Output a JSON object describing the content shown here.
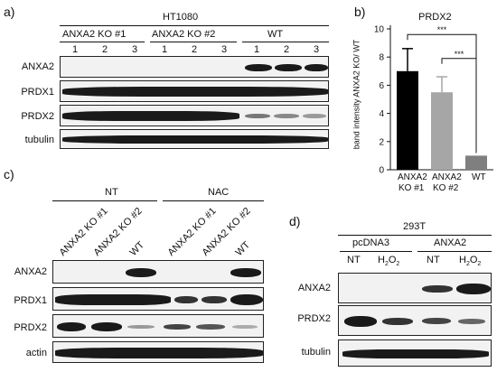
{
  "panel_a": {
    "label": "a)",
    "cell_line": "HT1080",
    "groups": [
      "ANXA2 KO #1",
      "ANXA2 KO #2",
      "WT"
    ],
    "lanes": [
      "1",
      "2",
      "3",
      "1",
      "2",
      "3",
      "1",
      "2",
      "3"
    ],
    "rows": [
      "ANXA2",
      "PRDX1",
      "PRDX2",
      "tubulin"
    ]
  },
  "panel_b": {
    "label": "b)",
    "chart_data": {
      "type": "bar",
      "title": "PRDX2",
      "ylabel": "band intensity ANXA2 KO/ WT",
      "categories": [
        "ANXA2\nKO #1",
        "ANXA2\nKO #2",
        "WT"
      ],
      "category_lines": [
        [
          "ANXA2",
          "KO #1"
        ],
        [
          "ANXA2",
          "KO #2"
        ],
        [
          "WT"
        ]
      ],
      "values": [
        7.0,
        5.5,
        1.0
      ],
      "errors": [
        1.6,
        1.1,
        0
      ],
      "bar_colors": [
        "#000000",
        "#a6a6a6",
        "#7f7f7f"
      ],
      "ylim": [
        0,
        10
      ],
      "yticks": [
        0,
        2,
        4,
        6,
        8,
        10
      ],
      "significance": [
        {
          "from": 0,
          "to": 2,
          "label": "***"
        },
        {
          "from": 1,
          "to": 2,
          "label": "***"
        }
      ]
    }
  },
  "panel_c": {
    "label": "c)",
    "treatments": [
      "NT",
      "NAC"
    ],
    "lanes": [
      "ANXA2 KO #1",
      "ANXA2 KO #2",
      "WT",
      "ANXA2 KO #1",
      "ANXA2 KO #2",
      "WT"
    ],
    "rows": [
      "ANXA2",
      "PRDX1",
      "PRDX2",
      "actin"
    ]
  },
  "panel_d": {
    "label": "d)",
    "cell_line": "293T",
    "groups": [
      "pcDNA3",
      "ANXA2"
    ],
    "lanes_nt": "NT",
    "lanes_h2o2_base": "H",
    "lanes_h2o2_sub1": "2",
    "lanes_h2o2_mid": "O",
    "lanes_h2o2_sub2": "2",
    "rows": [
      "ANXA2",
      "PRDX2",
      "tubulin"
    ]
  }
}
